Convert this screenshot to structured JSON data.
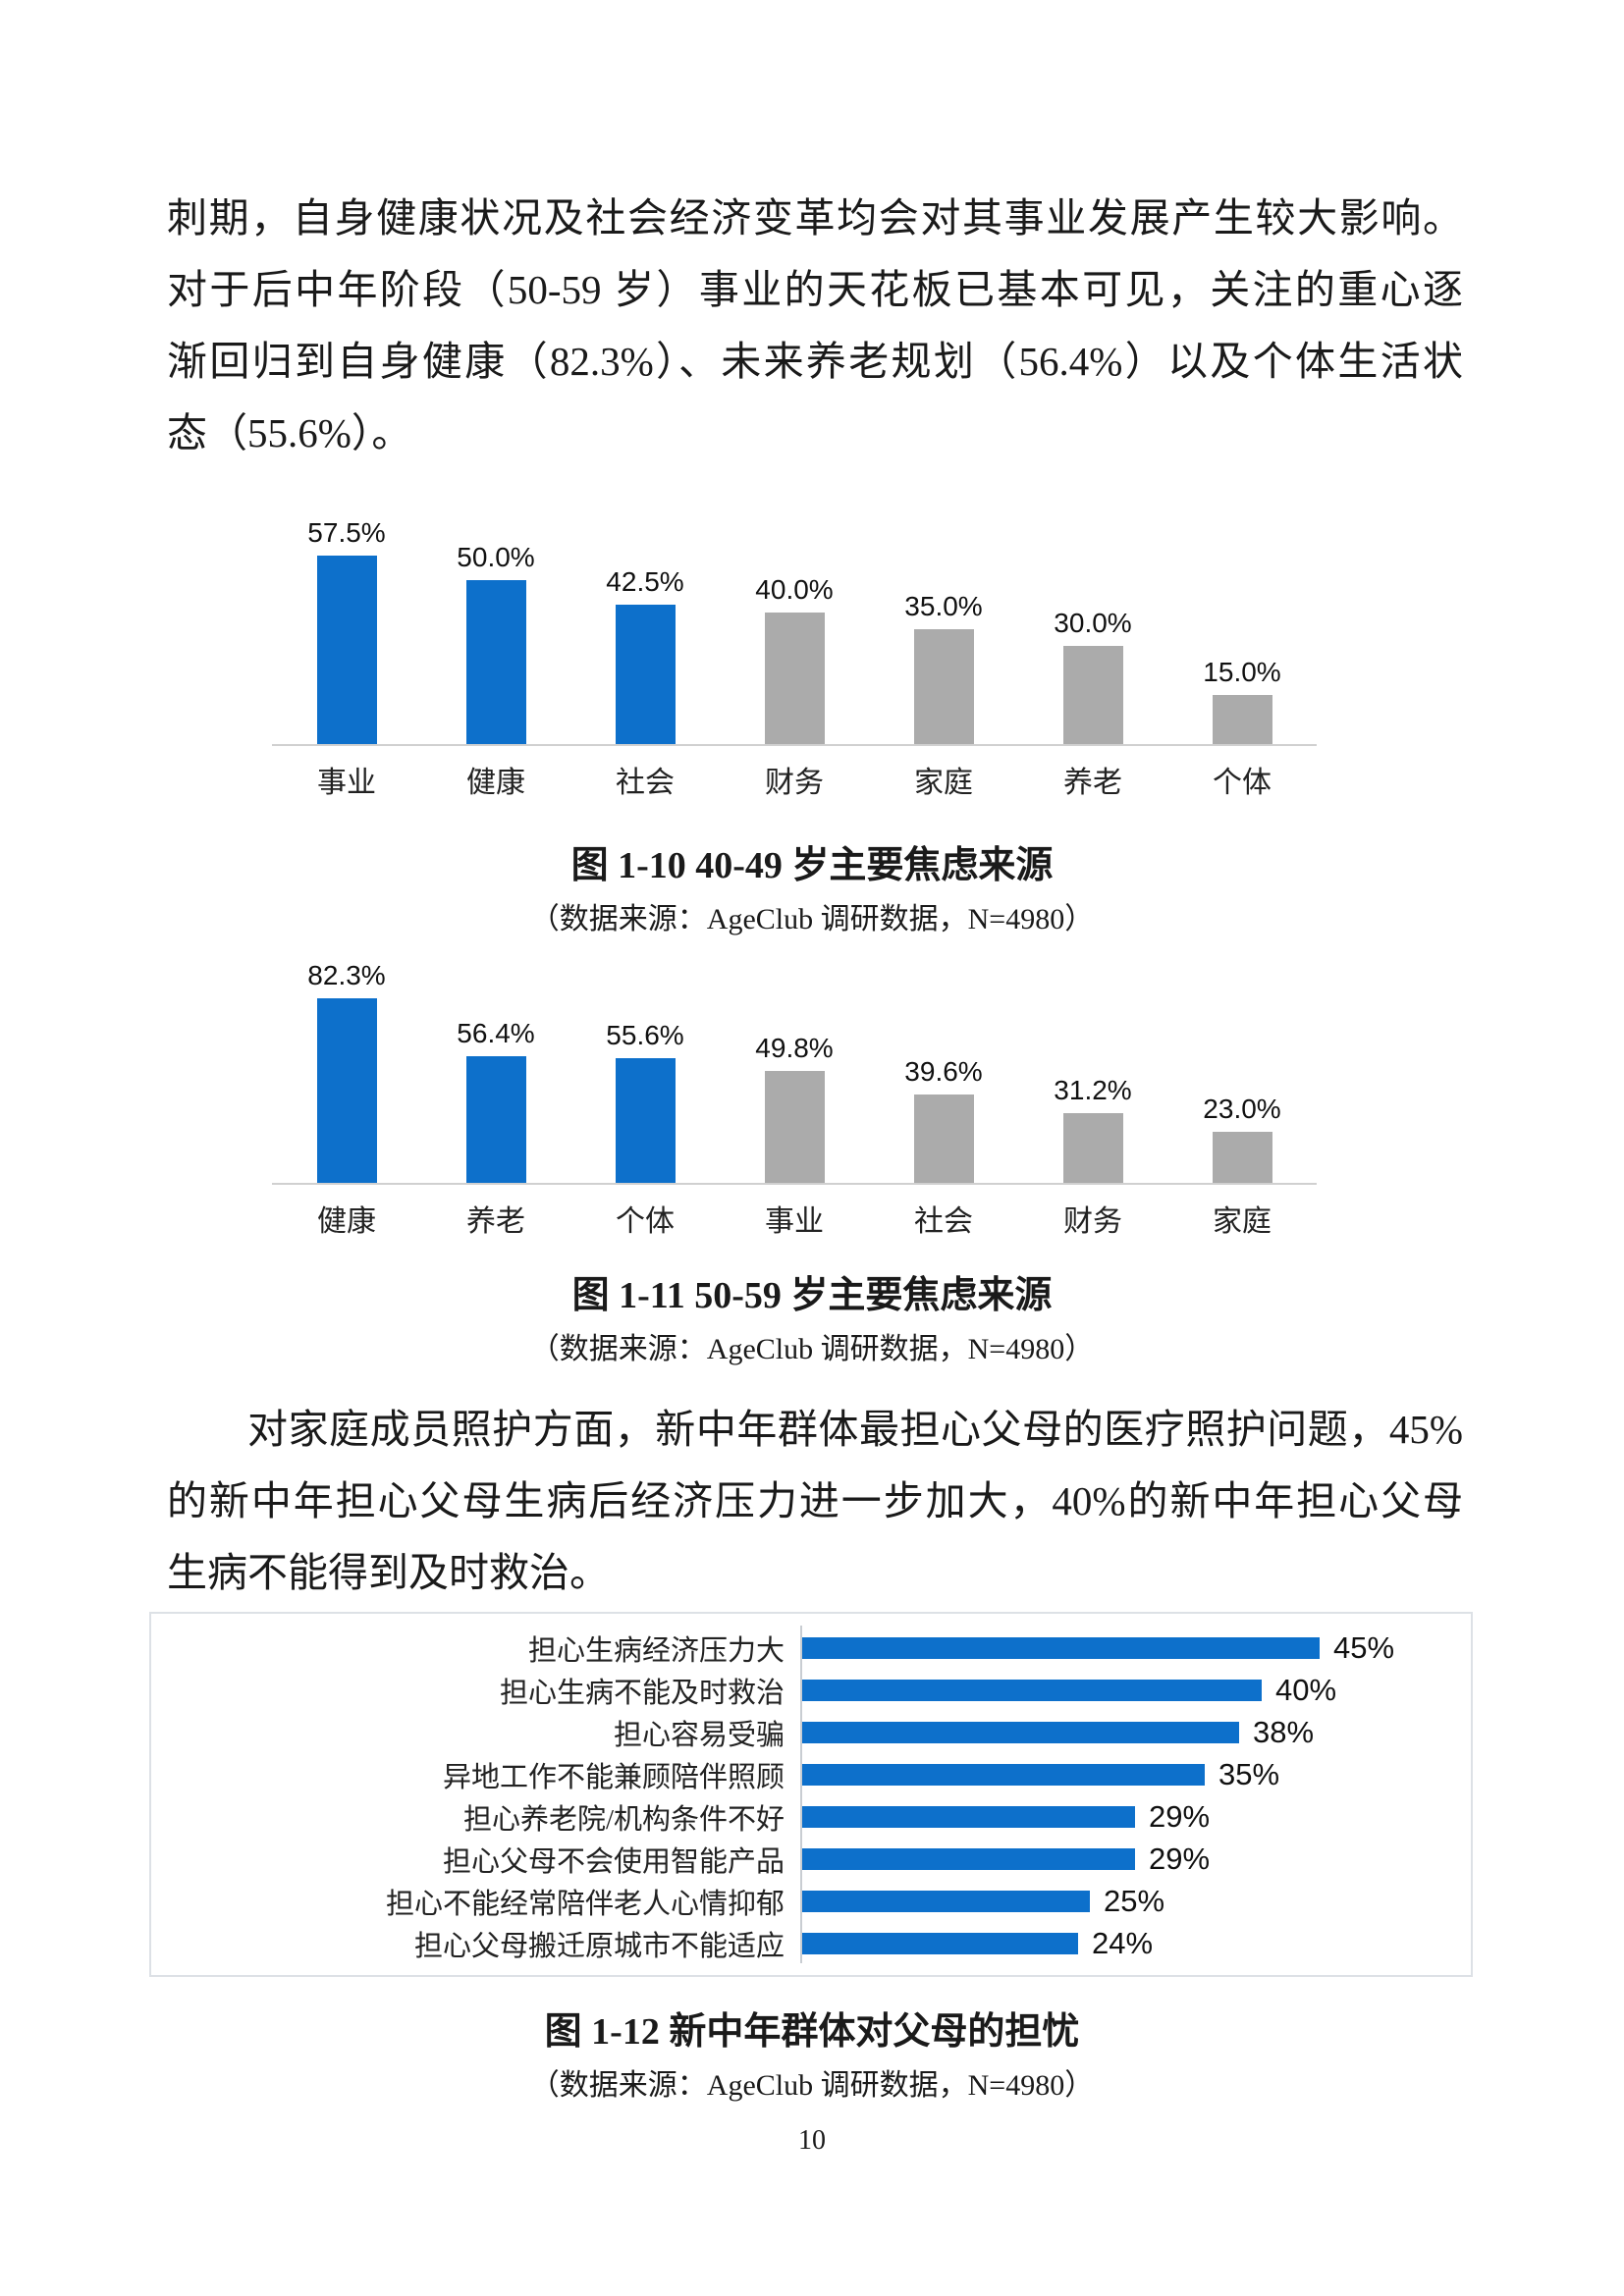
{
  "page_number": "10",
  "colors": {
    "bar_blue": "#0d70cb",
    "bar_gray": "#ababab",
    "axis_gray": "#d0d0d0"
  },
  "paragraphs": {
    "p1": {
      "lines": [
        "刺期，自身健康状况及社会经济变革均会对其事业发展产生较大影响。",
        "对于后中年阶段（50-59 岁）事业的天花板已基本可见，关注的重心逐",
        "渐回归到自身健康（82.3%）、未来养老规划（56.4%）以及个体生活状",
        "态（55.6%）。"
      ]
    },
    "p2": {
      "lines": [
        "对家庭成员照护方面，新中年群体最担心父母的医疗照护问题，45%",
        "的新中年担心父母生病后经济压力进一步加大，40%的新中年担心父母",
        "生病不能得到及时救治。"
      ]
    }
  },
  "chart_data": [
    {
      "type": "bar",
      "title": "图 1-10 40-49 岁主要焦虑来源",
      "source": "（数据来源：AgeClub 调研数据，N=4980）",
      "categories": [
        "事业",
        "健康",
        "社会",
        "财务",
        "家庭",
        "养老",
        "个体"
      ],
      "values": [
        57.5,
        50.0,
        42.5,
        40.0,
        35.0,
        30.0,
        15.0
      ],
      "labels": [
        "57.5%",
        "50.0%",
        "42.5%",
        "40.0%",
        "35.0%",
        "30.0%",
        "15.0%"
      ],
      "colors": [
        "blue",
        "blue",
        "blue",
        "gray",
        "gray",
        "gray",
        "gray"
      ],
      "ylim": [
        0,
        60
      ],
      "grid": false,
      "legend": "none"
    },
    {
      "type": "bar",
      "title": "图 1-11 50-59 岁主要焦虑来源",
      "source": "（数据来源：AgeClub 调研数据，N=4980）",
      "categories": [
        "健康",
        "养老",
        "个体",
        "事业",
        "社会",
        "财务",
        "家庭"
      ],
      "values": [
        82.3,
        56.4,
        55.6,
        49.8,
        39.6,
        31.2,
        23.0
      ],
      "labels": [
        "82.3%",
        "56.4%",
        "55.6%",
        "49.8%",
        "39.6%",
        "31.2%",
        "23.0%"
      ],
      "colors": [
        "blue",
        "blue",
        "blue",
        "gray",
        "gray",
        "gray",
        "gray"
      ],
      "ylim": [
        0,
        90
      ],
      "grid": false,
      "legend": "none"
    },
    {
      "type": "bar-horizontal",
      "title": "图 1-12 新中年群体对父母的担忧",
      "source": "（数据来源：AgeClub 调研数据，N=4980）",
      "categories": [
        "担心生病经济压力大",
        "担心生病不能及时救治",
        "担心容易受骗",
        "异地工作不能兼顾陪伴照顾",
        "担心养老院/机构条件不好",
        "担心父母不会使用智能产品",
        "担心不能经常陪伴老人心情抑郁",
        "担心父母搬迁原城市不能适应"
      ],
      "values": [
        45,
        40,
        38,
        35,
        29,
        29,
        25,
        24
      ],
      "labels": [
        "45%",
        "40%",
        "38%",
        "35%",
        "29%",
        "29%",
        "25%",
        "24%"
      ],
      "colors": [
        "blue",
        "blue",
        "blue",
        "blue",
        "blue",
        "blue",
        "blue",
        "blue"
      ],
      "xlim": [
        0,
        50
      ],
      "grid": false,
      "legend": "none"
    }
  ]
}
